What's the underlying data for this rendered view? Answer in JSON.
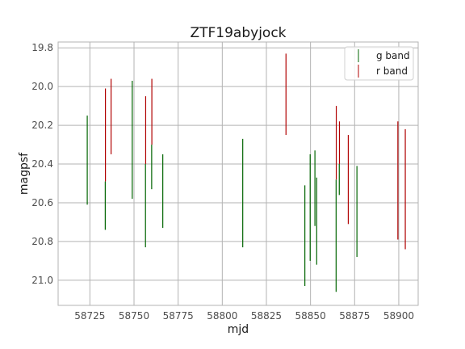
{
  "chart_data": {
    "type": "errorbar",
    "title": "ZTF19abyjock",
    "xlabel": "mjd",
    "ylabel": "magpsf",
    "xlim": [
      58707,
      58911
    ],
    "ylim": [
      21.13,
      19.77
    ],
    "y_inverted": true,
    "grid": true,
    "legend_position": "top-right",
    "x_ticks": [
      58725,
      58750,
      58775,
      58800,
      58825,
      58850,
      58875,
      58900
    ],
    "x_tick_labels": [
      "58725",
      "58750",
      "58775",
      "58800",
      "58825",
      "58850",
      "58875",
      "58900"
    ],
    "y_ticks": [
      19.8,
      20.0,
      20.2,
      20.4,
      20.6,
      20.8,
      21.0
    ],
    "y_tick_labels": [
      "19.8",
      "20.0",
      "20.2",
      "20.4",
      "20.6",
      "20.8",
      "21.0"
    ],
    "series": [
      {
        "name": "g band",
        "color": "#006400",
        "points": [
          {
            "x": 58723.5,
            "ymin": 20.15,
            "ymax": 20.61
          },
          {
            "x": 58733.7,
            "ymin": 20.49,
            "ymax": 20.74
          },
          {
            "x": 58749.0,
            "ymin": 19.97,
            "ymax": 20.58
          },
          {
            "x": 58756.5,
            "ymin": 20.4,
            "ymax": 20.83
          },
          {
            "x": 58760.0,
            "ymin": 20.3,
            "ymax": 20.53
          },
          {
            "x": 58766.3,
            "ymin": 20.35,
            "ymax": 20.73
          },
          {
            "x": 58811.6,
            "ymin": 20.27,
            "ymax": 20.83
          },
          {
            "x": 58846.8,
            "ymin": 20.51,
            "ymax": 21.03
          },
          {
            "x": 58849.8,
            "ymin": 20.35,
            "ymax": 20.9
          },
          {
            "x": 58852.5,
            "ymin": 20.33,
            "ymax": 20.72
          },
          {
            "x": 58853.5,
            "ymin": 20.47,
            "ymax": 20.92
          },
          {
            "x": 58864.5,
            "ymin": 20.48,
            "ymax": 21.06
          },
          {
            "x": 58866.3,
            "ymin": 20.4,
            "ymax": 20.56
          },
          {
            "x": 58876.3,
            "ymin": 20.41,
            "ymax": 20.88
          }
        ]
      },
      {
        "name": "r band",
        "color": "#b00000",
        "points": [
          {
            "x": 58733.8,
            "ymin": 20.01,
            "ymax": 20.49
          },
          {
            "x": 58737.0,
            "ymin": 19.96,
            "ymax": 20.35
          },
          {
            "x": 58756.6,
            "ymin": 20.05,
            "ymax": 20.4
          },
          {
            "x": 58760.1,
            "ymin": 19.96,
            "ymax": 20.3
          },
          {
            "x": 58836.1,
            "ymin": 19.83,
            "ymax": 20.25
          },
          {
            "x": 58864.6,
            "ymin": 20.1,
            "ymax": 20.48
          },
          {
            "x": 58866.4,
            "ymin": 20.18,
            "ymax": 20.4
          },
          {
            "x": 58871.4,
            "ymin": 20.25,
            "ymax": 20.71
          },
          {
            "x": 58899.5,
            "ymin": 20.18,
            "ymax": 20.79
          },
          {
            "x": 58903.7,
            "ymin": 20.22,
            "ymax": 20.84
          }
        ]
      }
    ]
  }
}
